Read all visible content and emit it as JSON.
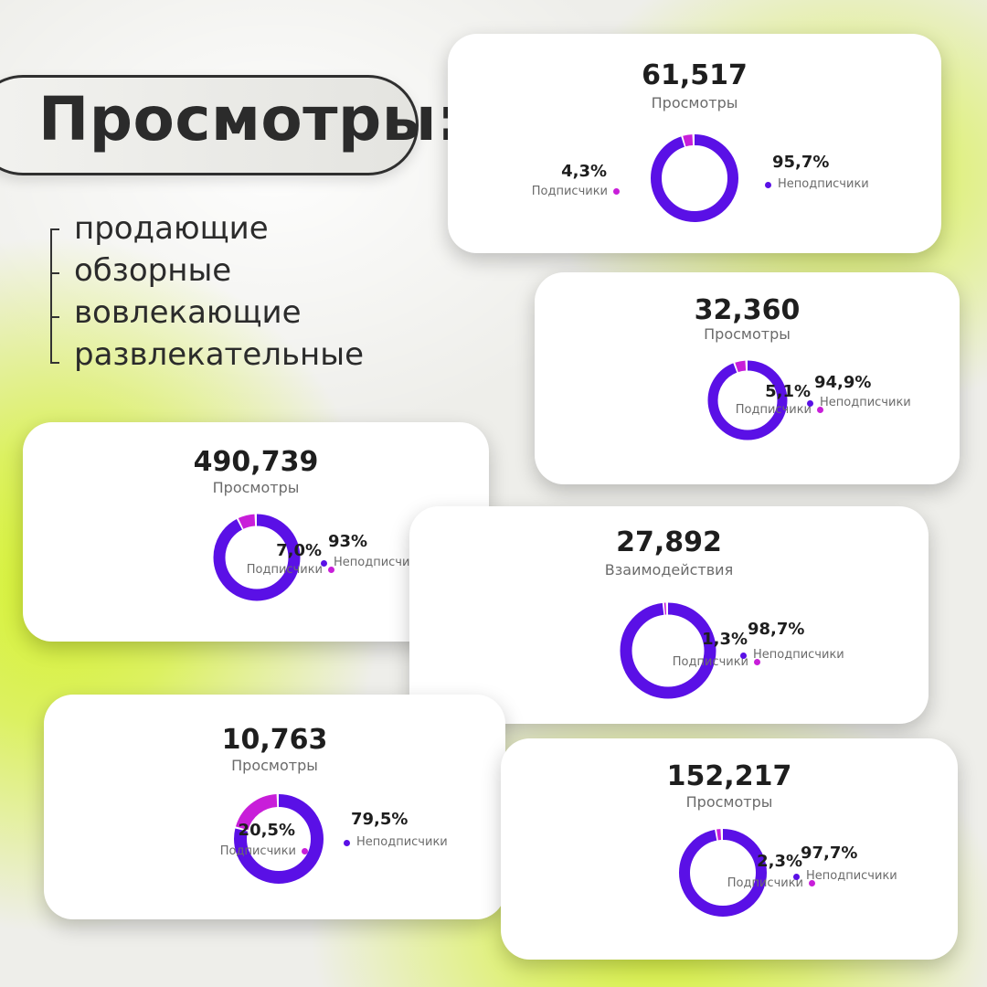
{
  "colors": {
    "subscribers": "#c81ed9",
    "non_subscribers": "#5a10e6",
    "accent_lime": "#d6f233"
  },
  "heading": {
    "title": "Просмотры:"
  },
  "list": {
    "items": [
      "продающие",
      "обзорные",
      "вовлекающие",
      "развлекательные"
    ]
  },
  "chart_data": [
    {
      "type": "pie",
      "total": "61,517",
      "metric": "Просмотры",
      "series": [
        {
          "label": "Подписчики",
          "pct_text": "4,3%",
          "value": 4.3
        },
        {
          "label": "Неподписчики",
          "pct_text": "95,7%",
          "value": 95.7
        }
      ]
    },
    {
      "type": "pie",
      "total": "32,360",
      "metric": "Просмотры",
      "series": [
        {
          "label": "Подписчики",
          "pct_text": "5,1%",
          "value": 5.1
        },
        {
          "label": "Неподписчики",
          "pct_text": "94,9%",
          "value": 94.9
        }
      ]
    },
    {
      "type": "pie",
      "total": "490,739",
      "metric": "Просмотры",
      "series": [
        {
          "label": "Подписчики",
          "pct_text": "7,0%",
          "value": 7.0
        },
        {
          "label": "Неподписчики",
          "pct_text": "93%",
          "value": 93
        }
      ]
    },
    {
      "type": "pie",
      "total": "27,892",
      "metric": "Взаимодействия",
      "series": [
        {
          "label": "Подписчики",
          "pct_text": "1,3%",
          "value": 1.3
        },
        {
          "label": "Неподписчики",
          "pct_text": "98,7%",
          "value": 98.7
        }
      ]
    },
    {
      "type": "pie",
      "total": "10,763",
      "metric": "Просмотры",
      "series": [
        {
          "label": "Подписчики",
          "pct_text": "20,5%",
          "value": 20.5
        },
        {
          "label": "Неподписчики",
          "pct_text": "79,5%",
          "value": 79.5
        }
      ]
    },
    {
      "type": "pie",
      "total": "152,217",
      "metric": "Просмотры",
      "series": [
        {
          "label": "Подписчики",
          "pct_text": "2,3%",
          "value": 2.3
        },
        {
          "label": "Неподписчики",
          "pct_text": "97,7%",
          "value": 97.7
        }
      ]
    }
  ]
}
